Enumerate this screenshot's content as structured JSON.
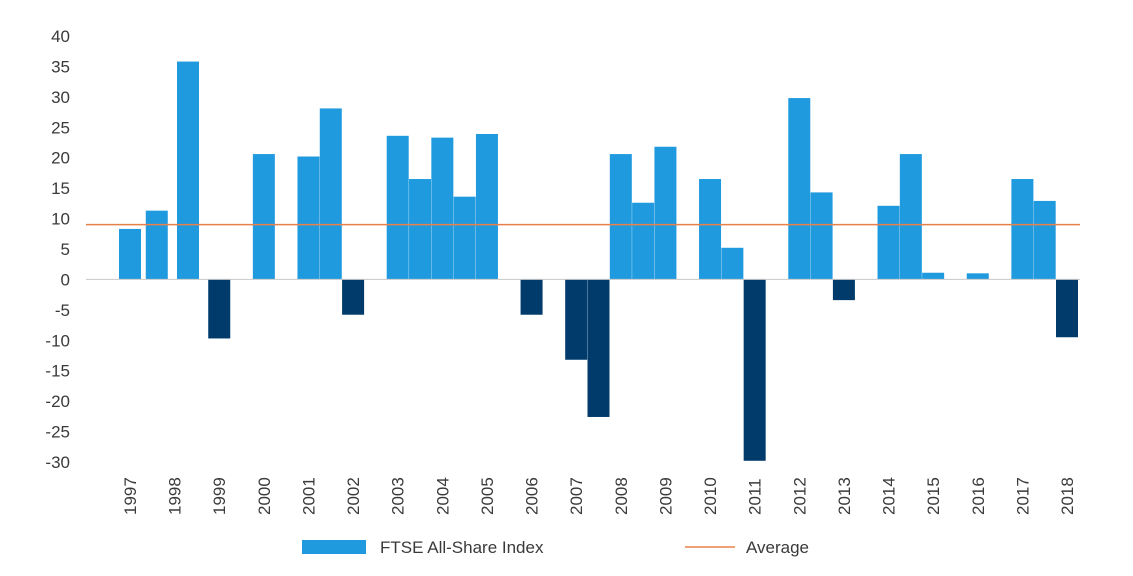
{
  "chart_data": {
    "type": "bar",
    "categories": [
      "1997",
      "1998",
      "1999",
      "2000",
      "2001",
      "2002",
      "2003",
      "2004",
      "2005",
      "2006",
      "2007",
      "2008",
      "2009",
      "2010",
      "2011",
      "2012",
      "2013",
      "2014",
      "2015",
      "2016",
      "2017",
      "2018"
    ],
    "x": [
      1997,
      1998,
      1999,
      2000,
      2001,
      2002,
      2003,
      2004,
      2005,
      2006,
      2007,
      2008,
      2009,
      2010,
      2011,
      2012,
      2013,
      2014,
      2015,
      2016,
      2017,
      2018
    ],
    "series": [
      {
        "name": "FTSE All-Share Index",
        "values": [
          [
            1997,
            8.3
          ],
          [
            1997.6,
            11.3
          ],
          [
            1998.3,
            35.8
          ],
          [
            1999,
            -9.7
          ],
          [
            2000,
            20.6
          ],
          [
            2001,
            20.2
          ],
          [
            2001.5,
            28.1
          ],
          [
            2002,
            -5.8
          ],
          [
            2003,
            23.6
          ],
          [
            2003.5,
            16.5
          ],
          [
            2004,
            23.3
          ],
          [
            2004.5,
            13.6
          ],
          [
            2005,
            23.9
          ],
          [
            2006,
            -5.8
          ],
          [
            2007,
            -13.2
          ],
          [
            2007.5,
            -22.6
          ],
          [
            2008,
            20.6
          ],
          [
            2008.5,
            12.6
          ],
          [
            2009,
            21.8
          ],
          [
            2010,
            16.5
          ],
          [
            2010.5,
            5.2
          ],
          [
            2011,
            -29.8
          ],
          [
            2012,
            29.8
          ],
          [
            2012.5,
            14.3
          ],
          [
            2013,
            -3.4
          ],
          [
            2014,
            12.1
          ],
          [
            2014.5,
            20.6
          ],
          [
            2015,
            1.1
          ],
          [
            2016,
            1.0
          ],
          [
            2017,
            16.5
          ],
          [
            2017.5,
            12.9
          ],
          [
            2018,
            -9.5
          ]
        ],
        "color": "#209ADF",
        "negative_color": "#003B6B"
      }
    ],
    "average": {
      "name": "Average",
      "value": 9,
      "color": "#E8804A"
    },
    "yticks": [
      "40",
      "35",
      "30",
      "25",
      "20",
      "15",
      "10",
      "5",
      "0",
      "-5",
      "-10",
      "-15",
      "-20",
      "-25",
      "-30"
    ],
    "ylim": [
      -30,
      40
    ],
    "title": "",
    "xlabel": "",
    "ylabel": "",
    "grid": false,
    "legend_position": "bottom"
  }
}
